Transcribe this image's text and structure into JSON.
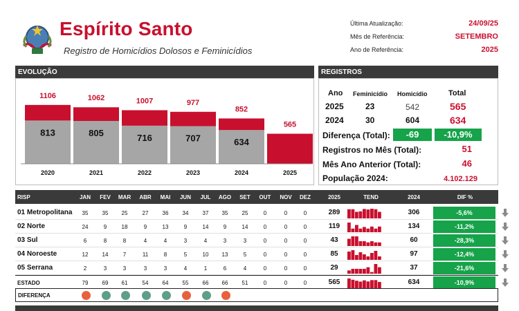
{
  "header": {
    "title": "Espírito Santo",
    "subtitle": "Registro de Homicídios Dolosos e Feminicídios",
    "meta": [
      {
        "label": "Última Atualização:",
        "value": "24/09/25"
      },
      {
        "label": "Mês de Referência:",
        "value": "SETEMBRO"
      },
      {
        "label": "Ano de Referência:",
        "value": "2025"
      }
    ]
  },
  "evolucao": {
    "title": "EVOLUÇÃO",
    "chart_data": {
      "type": "bar",
      "categories": [
        "2020",
        "2021",
        "2022",
        "2023",
        "2024",
        "2025"
      ],
      "series": [
        {
          "values": [
            813,
            805,
            716,
            707,
            634,
            0
          ]
        },
        {
          "values": [
            293,
            257,
            291,
            270,
            218,
            565
          ]
        }
      ],
      "totals": [
        1106,
        1062,
        1007,
        977,
        852,
        565
      ],
      "gray_labels": [
        "813",
        "805",
        "716",
        "707",
        "634",
        ""
      ],
      "total_labels": [
        "1106",
        "1062",
        "1007",
        "977",
        "852",
        "565"
      ],
      "colors": {
        "gray": "#a6a6a6",
        "red": "#c8102e"
      }
    }
  },
  "registros": {
    "title": "REGISTROS",
    "headers": {
      "ano": "Ano",
      "feminicidio": "Feminicídio",
      "homicidio": "Homicídio",
      "total": "Total"
    },
    "rows": [
      {
        "ano": "2025",
        "feminicidio": "23",
        "homicidio": "542",
        "total": "565"
      },
      {
        "ano": "2024",
        "feminicidio": "30",
        "homicidio": "604",
        "total": "634"
      }
    ],
    "diferenca_label": "Diferença (Total):",
    "diferenca_abs": "-69",
    "diferenca_pct": "-10,9%",
    "mes_label": "Registros no Mês (Total):",
    "mes_value": "51",
    "mes_anterior_label": "Mês Ano Anterior (Total):",
    "mes_anterior_value": "46",
    "populacao_label": "População 2024:",
    "populacao_value": "4.102.129"
  },
  "risp": {
    "headers": [
      "RISP",
      "JAN",
      "FEV",
      "MAR",
      "ABR",
      "MAI",
      "JUN",
      "JUL",
      "AGO",
      "SET",
      "OUT",
      "NOV",
      "DEZ",
      "2025",
      "TEND",
      "2024",
      "DIF %"
    ],
    "rows": [
      {
        "name": "01 Metropolitana",
        "months": [
          "35",
          "35",
          "25",
          "27",
          "36",
          "34",
          "37",
          "35",
          "25",
          "0",
          "0",
          "0"
        ],
        "y2025": "289",
        "y2024": "306",
        "dif": "-5,6%"
      },
      {
        "name": "02 Norte",
        "months": [
          "24",
          "9",
          "18",
          "9",
          "13",
          "9",
          "14",
          "9",
          "14",
          "0",
          "0",
          "0"
        ],
        "y2025": "119",
        "y2024": "134",
        "dif": "-11,2%"
      },
      {
        "name": "03 Sul",
        "months": [
          "6",
          "8",
          "8",
          "4",
          "4",
          "3",
          "4",
          "3",
          "3",
          "0",
          "0",
          "0"
        ],
        "y2025": "43",
        "y2024": "60",
        "dif": "-28,3%"
      },
      {
        "name": "04 Noroeste",
        "months": [
          "12",
          "14",
          "7",
          "11",
          "8",
          "5",
          "10",
          "13",
          "5",
          "0",
          "0",
          "0"
        ],
        "y2025": "85",
        "y2024": "97",
        "dif": "-12,4%"
      },
      {
        "name": "05 Serrana",
        "months": [
          "2",
          "3",
          "3",
          "3",
          "3",
          "4",
          "1",
          "6",
          "4",
          "0",
          "0",
          "0"
        ],
        "y2025": "29",
        "y2024": "37",
        "dif": "-21,6%"
      }
    ],
    "estado": {
      "name": "ESTADO",
      "months": [
        "79",
        "69",
        "61",
        "54",
        "64",
        "55",
        "66",
        "66",
        "51",
        "0",
        "0",
        "0"
      ],
      "y2025": "565",
      "y2024": "634",
      "dif": "-10,9%"
    },
    "diferenca_label": "DIFERENÇA",
    "diferenca_dots": [
      "#e8613c",
      "#5f9e8a",
      "#5f9e8a",
      "#5f9e8a",
      "#5f9e8a",
      "#e8613c",
      "#5f9e8a",
      "#e8613c"
    ],
    "colors": {
      "dif_green": "#16a34a",
      "spark": "#c8102e"
    }
  }
}
